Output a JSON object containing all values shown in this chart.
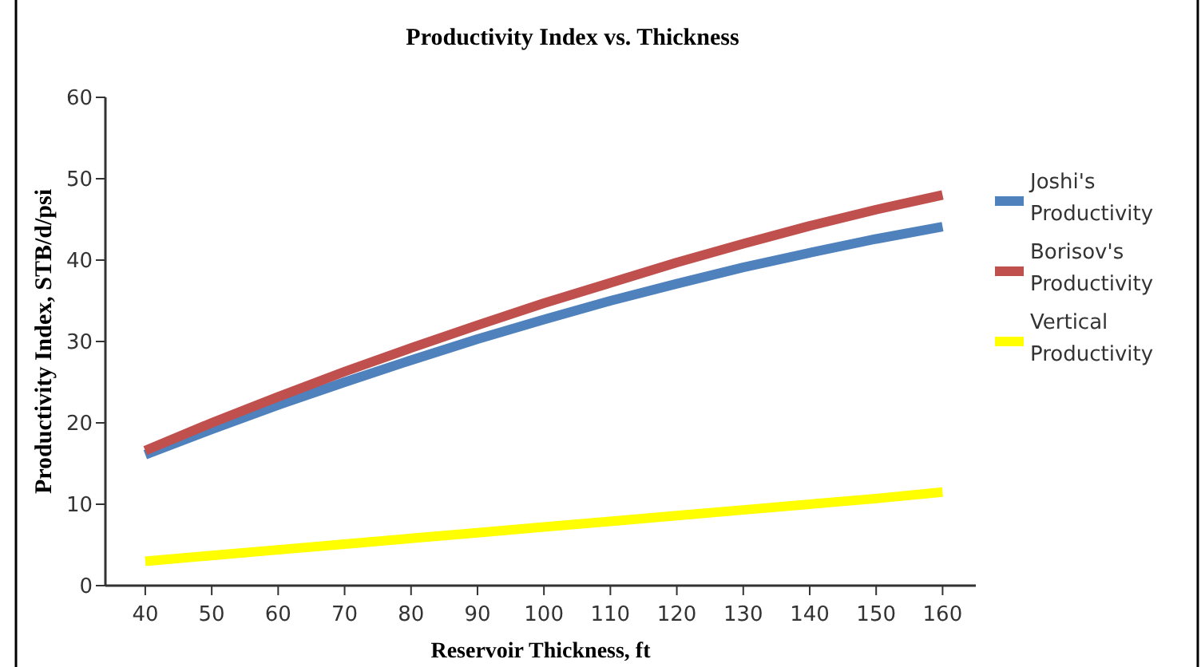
{
  "chart_data": {
    "type": "line",
    "title": "Productivity Index vs. Thickness",
    "xlabel": "Reservoir Thickness, ft",
    "ylabel": "Productivity Index, STB/d/psi",
    "x": [
      40,
      50,
      60,
      70,
      80,
      90,
      100,
      110,
      120,
      130,
      140,
      150,
      160
    ],
    "series": [
      {
        "name": "Joshi's Productivity",
        "color": "#4f81bd",
        "values": [
          16.1,
          19.2,
          22.2,
          25,
          27.7,
          30.3,
          32.7,
          35,
          37.1,
          39.1,
          40.9,
          42.6,
          44.1
        ]
      },
      {
        "name": "Borisov's Productivity",
        "color": "#c0504d",
        "values": [
          16.6,
          20,
          23.2,
          26.3,
          29.2,
          32,
          34.7,
          37.2,
          39.7,
          42,
          44.2,
          46.2,
          48
        ]
      },
      {
        "name": "Vertical Productivity",
        "color": "#ffff00",
        "values": [
          3,
          3.7,
          4.4,
          5.1,
          5.8,
          6.5,
          7.2,
          7.9,
          8.6,
          9.3,
          10,
          10.7,
          11.5
        ]
      }
    ],
    "xlim": [
      34,
      165
    ],
    "xticks": [
      40,
      50,
      60,
      70,
      80,
      90,
      100,
      110,
      120,
      130,
      140,
      150,
      160
    ],
    "ylim": [
      0,
      60
    ],
    "yticks": [
      0,
      10,
      20,
      30,
      40,
      50,
      60
    ],
    "grid": false,
    "legend": "right",
    "marker": "none",
    "line_style": "solid"
  }
}
